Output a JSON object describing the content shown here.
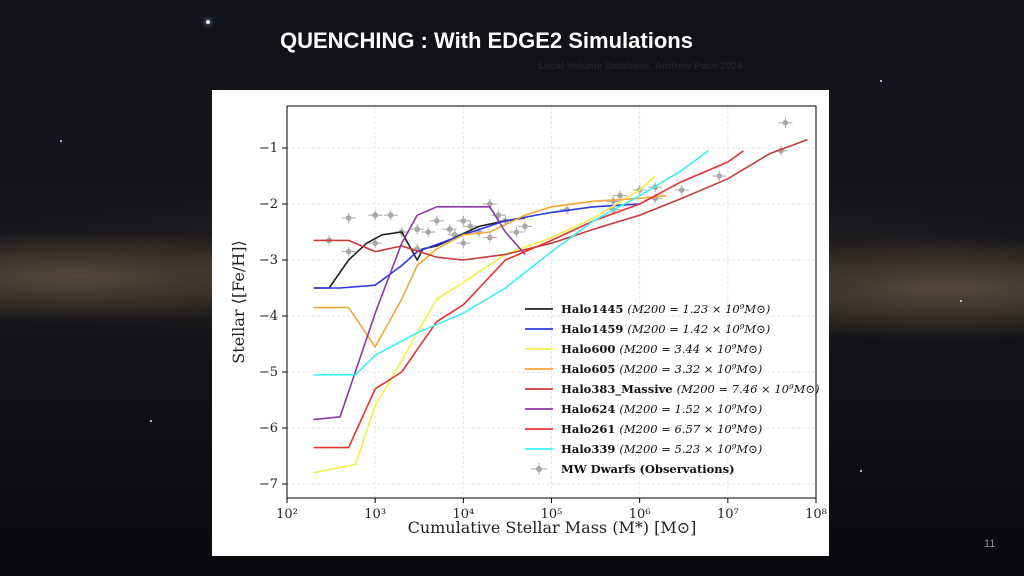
{
  "slide": {
    "title": "QUENCHING : With EDGE2 Simulations",
    "subtitle": "Local Volume Database, Andrew Pace 2024",
    "page_number": "11"
  },
  "chart_data": {
    "type": "line",
    "xlabel": "Cumulative Stellar Mass (M*) [M⊙]",
    "ylabel": "Stellar ⟨[Fe/H]⟩",
    "x_scale": "log",
    "xlim": [
      100,
      100000000
    ],
    "ylim": [
      -7.25,
      -0.25
    ],
    "x_ticks": [
      100,
      1000,
      10000,
      100000,
      1000000,
      10000000,
      100000000
    ],
    "x_tick_labels": [
      "10²",
      "10³",
      "10⁴",
      "10⁵",
      "10⁶",
      "10⁷",
      "10⁸"
    ],
    "y_ticks": [
      -1,
      -2,
      -3,
      -4,
      -5,
      -6,
      -7
    ],
    "y_tick_labels": [
      "−1",
      "−2",
      "−3",
      "−4",
      "−5",
      "−6",
      "−7"
    ],
    "grid": true,
    "legend_position": "lower-right",
    "series": [
      {
        "name": "Halo1445",
        "mass_label": "(M200 = 1.23 × 10⁹M⊙)",
        "color": "#222222",
        "x": [
          200,
          300,
          500,
          800,
          1200,
          2000,
          3000,
          3500,
          5000,
          8000,
          15000,
          30000,
          50000
        ],
        "y": [
          -3.5,
          -3.5,
          -3.0,
          -2.7,
          -2.55,
          -2.5,
          -3.0,
          -2.8,
          -2.75,
          -2.6,
          -2.4,
          -2.3,
          -2.25
        ]
      },
      {
        "name": "Halo1459",
        "mass_label": "(M200 = 1.42 × 10⁹M⊙)",
        "color": "#2a3be0",
        "x": [
          200,
          400,
          1000,
          2000,
          3000,
          10000,
          30000,
          100000,
          300000,
          1000000
        ],
        "y": [
          -3.5,
          -3.5,
          -3.45,
          -3.1,
          -2.85,
          -2.55,
          -2.3,
          -2.15,
          -2.05,
          -2.0
        ]
      },
      {
        "name": "Halo600",
        "mass_label": "(M200 = 3.44 × 10⁹M⊙)",
        "color": "#f2f04a",
        "x": [
          200,
          600,
          1000,
          2000,
          3000,
          5000,
          10000,
          30000,
          100000,
          300000,
          1000000,
          1500000
        ],
        "y": [
          -6.8,
          -6.65,
          -5.6,
          -4.8,
          -4.3,
          -3.7,
          -3.4,
          -2.9,
          -2.6,
          -2.25,
          -1.75,
          -1.5
        ]
      },
      {
        "name": "Halo605",
        "mass_label": "(M200 = 3.32 × 10⁹M⊙)",
        "color": "#f2a73a",
        "x": [
          200,
          500,
          1000,
          2000,
          3000,
          5000,
          10000,
          20000,
          50000,
          100000,
          300000,
          1000000,
          2000000
        ],
        "y": [
          -3.85,
          -3.85,
          -4.55,
          -3.7,
          -3.1,
          -2.8,
          -2.55,
          -2.5,
          -2.2,
          -2.05,
          -1.95,
          -1.9,
          -1.85
        ]
      },
      {
        "name": "Halo383_Massive",
        "mass_label": "(M200 = 7.46 × 10⁹M⊙)",
        "color": "#c43c3c",
        "x": [
          200,
          500,
          1000,
          2000,
          5000,
          10000,
          30000,
          100000,
          300000,
          1000000,
          3000000,
          10000000,
          30000000,
          80000000
        ],
        "y": [
          -2.65,
          -2.65,
          -2.85,
          -2.75,
          -2.95,
          -3.0,
          -2.9,
          -2.7,
          -2.45,
          -2.2,
          -1.9,
          -1.55,
          -1.1,
          -0.85
        ]
      },
      {
        "name": "Halo624",
        "mass_label": "(M200 = 1.52 × 10⁹M⊙)",
        "color": "#8e36a8",
        "x": [
          200,
          400,
          1000,
          2000,
          3000,
          5000,
          10000,
          20000,
          30000,
          50000
        ],
        "y": [
          -5.85,
          -5.8,
          -3.95,
          -2.7,
          -2.2,
          -2.05,
          -2.05,
          -2.05,
          -2.5,
          -2.9
        ]
      },
      {
        "name": "Halo261",
        "mass_label": "(M200 = 6.57 × 10⁹M⊙)",
        "color": "#e83232",
        "x": [
          200,
          500,
          1000,
          2000,
          3000,
          5000,
          10000,
          30000,
          100000,
          300000,
          1000000,
          3000000,
          10000000,
          15000000
        ],
        "y": [
          -6.35,
          -6.35,
          -5.3,
          -5.0,
          -4.6,
          -4.1,
          -3.8,
          -3.0,
          -2.65,
          -2.3,
          -2.0,
          -1.6,
          -1.25,
          -1.05
        ]
      },
      {
        "name": "Halo339",
        "mass_label": "(M200 = 5.23 × 10⁹M⊙)",
        "color": "#3ef0f0",
        "x": [
          200,
          600,
          1000,
          3000,
          10000,
          30000,
          100000,
          300000,
          1000000,
          3000000,
          6000000
        ],
        "y": [
          -5.05,
          -5.05,
          -4.7,
          -4.3,
          -3.95,
          -3.5,
          -2.85,
          -2.3,
          -1.85,
          -1.4,
          -1.05
        ]
      }
    ],
    "observations": {
      "name": "MW Dwarfs (Observations)",
      "color": "#a8a8a8",
      "x": [
        300,
        500,
        500,
        1000,
        1000,
        1500,
        2000,
        3000,
        3000,
        4000,
        5000,
        7000,
        8000,
        10000,
        10000,
        12000,
        15000,
        20000,
        20000,
        25000,
        30000,
        40000,
        50000,
        150000,
        500000,
        500000,
        600000,
        1000000,
        1500000,
        1500000,
        3000000,
        8000000,
        40000000,
        45000000
      ],
      "y": [
        -2.65,
        -2.25,
        -2.85,
        -2.2,
        -2.7,
        -2.2,
        -2.5,
        -2.45,
        -2.8,
        -2.5,
        -2.3,
        -2.45,
        -2.55,
        -2.3,
        -2.7,
        -2.4,
        -2.5,
        -2.0,
        -2.6,
        -2.2,
        -2.3,
        -2.5,
        -2.4,
        -2.1,
        -1.95,
        -2.1,
        -1.85,
        -1.75,
        -1.7,
        -1.9,
        -1.75,
        -1.5,
        -1.05,
        -0.55
      ]
    }
  }
}
